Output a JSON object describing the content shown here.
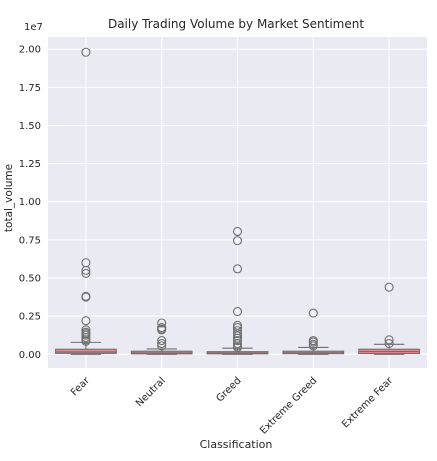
{
  "chart_data": {
    "type": "box",
    "title": "Daily Trading Volume by Market Sentiment",
    "xlabel": "Classification",
    "ylabel": "total_volume",
    "y_scale_label": "1e7",
    "scale_factor": 10000000,
    "ylim": [
      -900000,
      20800000
    ],
    "yticks": [
      0,
      2500000,
      5000000,
      7500000,
      10000000,
      12500000,
      15000000,
      17500000,
      20000000
    ],
    "ytick_labels": [
      "0.00",
      "0.25",
      "0.50",
      "0.75",
      "1.00",
      "1.25",
      "1.50",
      "1.75",
      "2.00"
    ],
    "categories": [
      "Fear",
      "Neutral",
      "Greed",
      "Extreme Greed",
      "Extreme Fear"
    ],
    "grid": true,
    "box_color": "#e78a94",
    "box_edge_color": "#6f6f6f",
    "plot_background": "#eaeaf2",
    "boxes": [
      {
        "category": "Fear",
        "whisker_low": 0,
        "q1": 60000,
        "median": 150000,
        "q3": 330000,
        "whisker_high": 780000,
        "outliers": [
          19800000,
          6000000,
          5500000,
          5300000,
          3800000,
          3750000,
          2200000,
          1600000,
          1450000,
          1350000,
          1250000,
          1100000,
          950000,
          850000
        ]
      },
      {
        "category": "Neutral",
        "whisker_low": 0,
        "q1": 30000,
        "median": 90000,
        "q3": 200000,
        "whisker_high": 350000,
        "outliers": [
          2050000,
          1750000,
          1650000,
          1600000,
          900000,
          700000,
          550000
        ]
      },
      {
        "category": "Greed",
        "whisker_low": 0,
        "q1": 30000,
        "median": 80000,
        "q3": 170000,
        "whisker_high": 400000,
        "outliers": [
          8050000,
          7450000,
          5600000,
          2800000,
          1900000,
          1750000,
          1550000,
          1350000,
          1200000,
          1050000,
          900000,
          700000,
          550000,
          450000
        ]
      },
      {
        "category": "Extreme Greed",
        "whisker_low": 0,
        "q1": 40000,
        "median": 100000,
        "q3": 200000,
        "whisker_high": 450000,
        "outliers": [
          2700000,
          900000,
          800000,
          650000,
          550000
        ]
      },
      {
        "category": "Extreme Fear",
        "whisker_low": 0,
        "q1": 50000,
        "median": 180000,
        "q3": 330000,
        "whisker_high": 650000,
        "outliers": [
          4400000,
          950000,
          700000
        ]
      }
    ]
  }
}
